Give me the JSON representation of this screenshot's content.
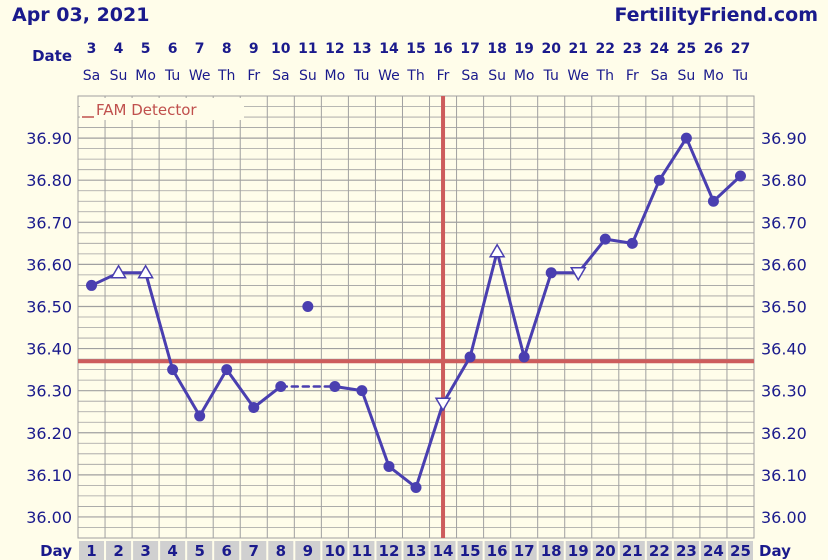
{
  "header": {
    "date_label": "Apr 03, 2021",
    "site_label": "FertilityFriend.com"
  },
  "legend": {
    "label": "FAM Detector"
  },
  "row_labels": {
    "date": "Date",
    "day": "Day"
  },
  "colors": {
    "line": "#4a3fb0",
    "coverline": "#cd5c5c",
    "grid": "#a0a0a0",
    "plot_bg": "#fffdea",
    "day_cell_bg": "#d0d0d0",
    "text": "#1a1a8c"
  },
  "chart_data": {
    "type": "line",
    "title": "",
    "ylabel": "",
    "xlabel": "Day",
    "ylim": [
      35.95,
      37.0
    ],
    "y_ticks": [
      "36.90",
      "36.80",
      "36.70",
      "36.60",
      "36.50",
      "36.40",
      "36.30",
      "36.20",
      "36.10",
      "36.00"
    ],
    "y_tick_values": [
      36.9,
      36.8,
      36.7,
      36.6,
      36.5,
      36.4,
      36.3,
      36.2,
      36.1,
      36.0
    ],
    "cycle_days": [
      "1",
      "2",
      "3",
      "4",
      "5",
      "6",
      "7",
      "8",
      "9",
      "10",
      "11",
      "12",
      "13",
      "14",
      "15",
      "16",
      "17",
      "18",
      "19",
      "20",
      "21",
      "22",
      "23",
      "24",
      "25"
    ],
    "dates": [
      "3",
      "4",
      "5",
      "6",
      "7",
      "8",
      "9",
      "10",
      "11",
      "12",
      "13",
      "14",
      "15",
      "16",
      "17",
      "18",
      "19",
      "20",
      "21",
      "22",
      "23",
      "24",
      "25",
      "26",
      "27"
    ],
    "weekdays": [
      "Sa",
      "Su",
      "Mo",
      "Tu",
      "We",
      "Th",
      "Fr",
      "Sa",
      "Su",
      "Mo",
      "Tu",
      "We",
      "Th",
      "Fr",
      "Sa",
      "Su",
      "Mo",
      "Tu",
      "We",
      "Th",
      "Fr",
      "Sa",
      "Su",
      "Mo",
      "Tu"
    ],
    "coverline": 36.37,
    "ovulation_day": 14,
    "series": [
      {
        "points": [
          {
            "day": 1,
            "temp": 36.55,
            "marker": "circle"
          },
          {
            "day": 2,
            "temp": 36.58,
            "marker": "triangle-up"
          },
          {
            "day": 3,
            "temp": 36.58,
            "marker": "triangle-up"
          },
          {
            "day": 4,
            "temp": 36.35,
            "marker": "circle"
          },
          {
            "day": 5,
            "temp": 36.24,
            "marker": "circle"
          },
          {
            "day": 6,
            "temp": 36.35,
            "marker": "circle"
          },
          {
            "day": 7,
            "temp": 36.26,
            "marker": "circle"
          },
          {
            "day": 8,
            "temp": 36.31,
            "marker": "circle"
          },
          {
            "day": 10,
            "temp": 36.31,
            "marker": "circle"
          },
          {
            "day": 11,
            "temp": 36.3,
            "marker": "circle"
          },
          {
            "day": 12,
            "temp": 36.12,
            "marker": "circle"
          },
          {
            "day": 13,
            "temp": 36.07,
            "marker": "circle"
          },
          {
            "day": 14,
            "temp": 36.27,
            "marker": "triangle-down"
          },
          {
            "day": 15,
            "temp": 36.38,
            "marker": "circle"
          },
          {
            "day": 16,
            "temp": 36.63,
            "marker": "triangle-up"
          },
          {
            "day": 17,
            "temp": 36.38,
            "marker": "circle"
          },
          {
            "day": 18,
            "temp": 36.58,
            "marker": "circle"
          },
          {
            "day": 19,
            "temp": 36.58,
            "marker": "triangle-down"
          },
          {
            "day": 20,
            "temp": 36.66,
            "marker": "circle"
          },
          {
            "day": 21,
            "temp": 36.65,
            "marker": "circle"
          },
          {
            "day": 22,
            "temp": 36.8,
            "marker": "circle"
          },
          {
            "day": 23,
            "temp": 36.9,
            "marker": "circle"
          },
          {
            "day": 24,
            "temp": 36.75,
            "marker": "circle"
          },
          {
            "day": 25,
            "temp": 36.81,
            "marker": "circle"
          }
        ],
        "dashed_segments": [
          [
            8,
            10
          ]
        ],
        "discarded_points": [
          {
            "day": 9,
            "temp": 36.5,
            "marker": "circle"
          }
        ]
      }
    ]
  }
}
